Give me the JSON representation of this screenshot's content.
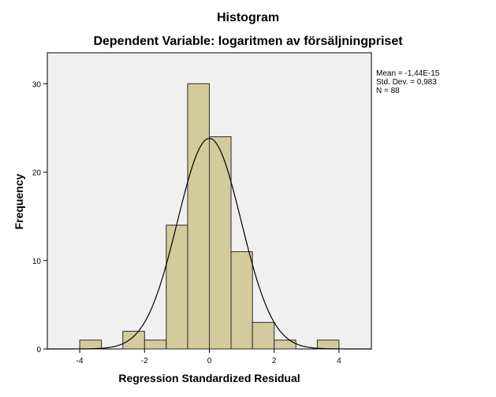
{
  "chart_data": {
    "type": "bar",
    "title": "Histogram",
    "subtitle": "Dependent Variable: logaritmen av försäljningpriset",
    "xlabel": "Regression Standardized Residual",
    "ylabel": "Frequency",
    "xlim": [
      -5,
      5
    ],
    "ylim": [
      0,
      33.5
    ],
    "x_ticks": [
      -4,
      -2,
      0,
      2,
      4
    ],
    "y_ticks": [
      0,
      10,
      20,
      30
    ],
    "bins": [
      {
        "from": -4.0,
        "to": -3.33,
        "count": 1
      },
      {
        "from": -2.67,
        "to": -2.0,
        "count": 2
      },
      {
        "from": -2.0,
        "to": -1.33,
        "count": 1
      },
      {
        "from": -1.33,
        "to": -0.67,
        "count": 14
      },
      {
        "from": -0.67,
        "to": 0.0,
        "count": 30
      },
      {
        "from": 0.0,
        "to": 0.67,
        "count": 24
      },
      {
        "from": 0.67,
        "to": 1.33,
        "count": 11
      },
      {
        "from": 1.33,
        "to": 2.0,
        "count": 3
      },
      {
        "from": 2.0,
        "to": 2.67,
        "count": 1
      },
      {
        "from": 3.33,
        "to": 4.0,
        "count": 1
      }
    ],
    "normal_curve": {
      "mean": -1.44e-15,
      "std_dev": 0.983,
      "n": 88,
      "bin_width": 0.667
    },
    "stats_text": [
      "Mean = -1,44E-15",
      "Std. Dev. = 0,983",
      "N = 88"
    ],
    "colors": {
      "bar_fill": "#d2cc9c",
      "bar_stroke": "#2b2b2b",
      "plot_bg": "#f0f0f0",
      "curve": "#000000"
    },
    "grid": false
  }
}
